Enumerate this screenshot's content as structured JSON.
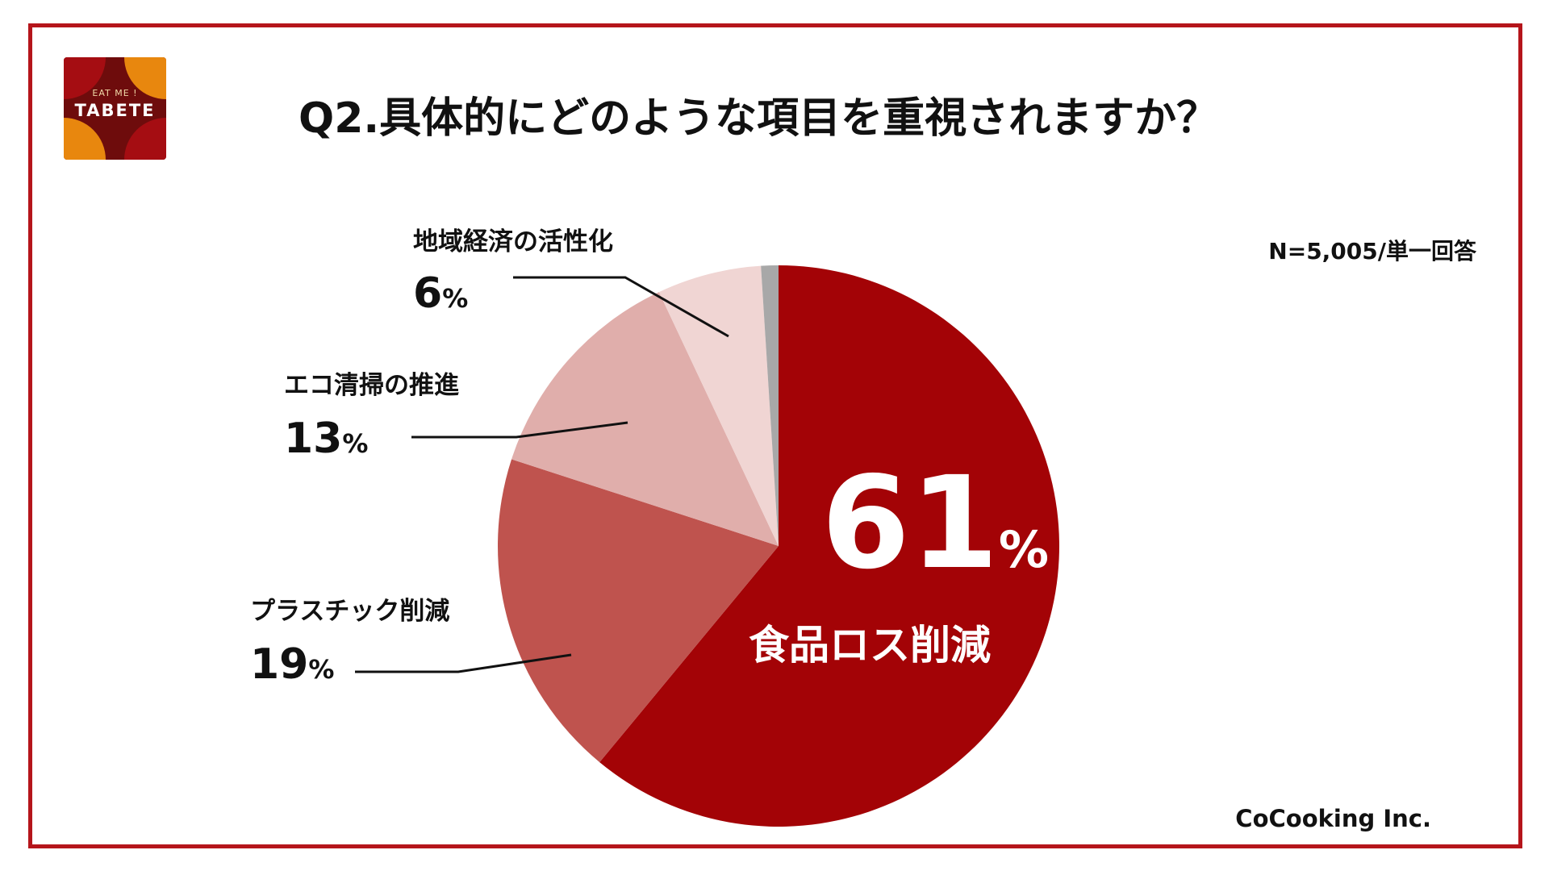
{
  "logo": {
    "top_text": "EAT ME !",
    "main_text": "TABETE",
    "colors": {
      "dark": "#6e0c0c",
      "red": "#a50d12",
      "orange": "#e8870e"
    }
  },
  "title": "Q2.具体的にどのような項目を重視されますか？",
  "sample_note": "N=5,005/単一回答",
  "credit": "CoCooking Inc.",
  "colors": {
    "frame": "#b5151b",
    "leader": "#111111"
  },
  "chart_data": {
    "type": "pie",
    "title": "Q2.具体的にどのような項目を重視されますか？",
    "note": "N=5,005/単一回答",
    "start": "12 o'clock, clockwise",
    "slices": [
      {
        "label": "食品ロス削減",
        "value": 61,
        "percent_text": "61",
        "unit": "%",
        "color": "#a30306"
      },
      {
        "label": "プラスチック削減",
        "value": 19,
        "percent_text": "19",
        "unit": "%",
        "color": "#bf534e"
      },
      {
        "label": "エコ清掃の推進",
        "value": 13,
        "percent_text": "13",
        "unit": "%",
        "color": "#e0aeab"
      },
      {
        "label": "地域経済の活性化",
        "value": 6,
        "percent_text": "6",
        "unit": "%",
        "color": "#f0d5d3"
      },
      {
        "label": "",
        "value": 1,
        "percent_text": "",
        "unit": "",
        "color": "#a8a8a8"
      }
    ]
  }
}
